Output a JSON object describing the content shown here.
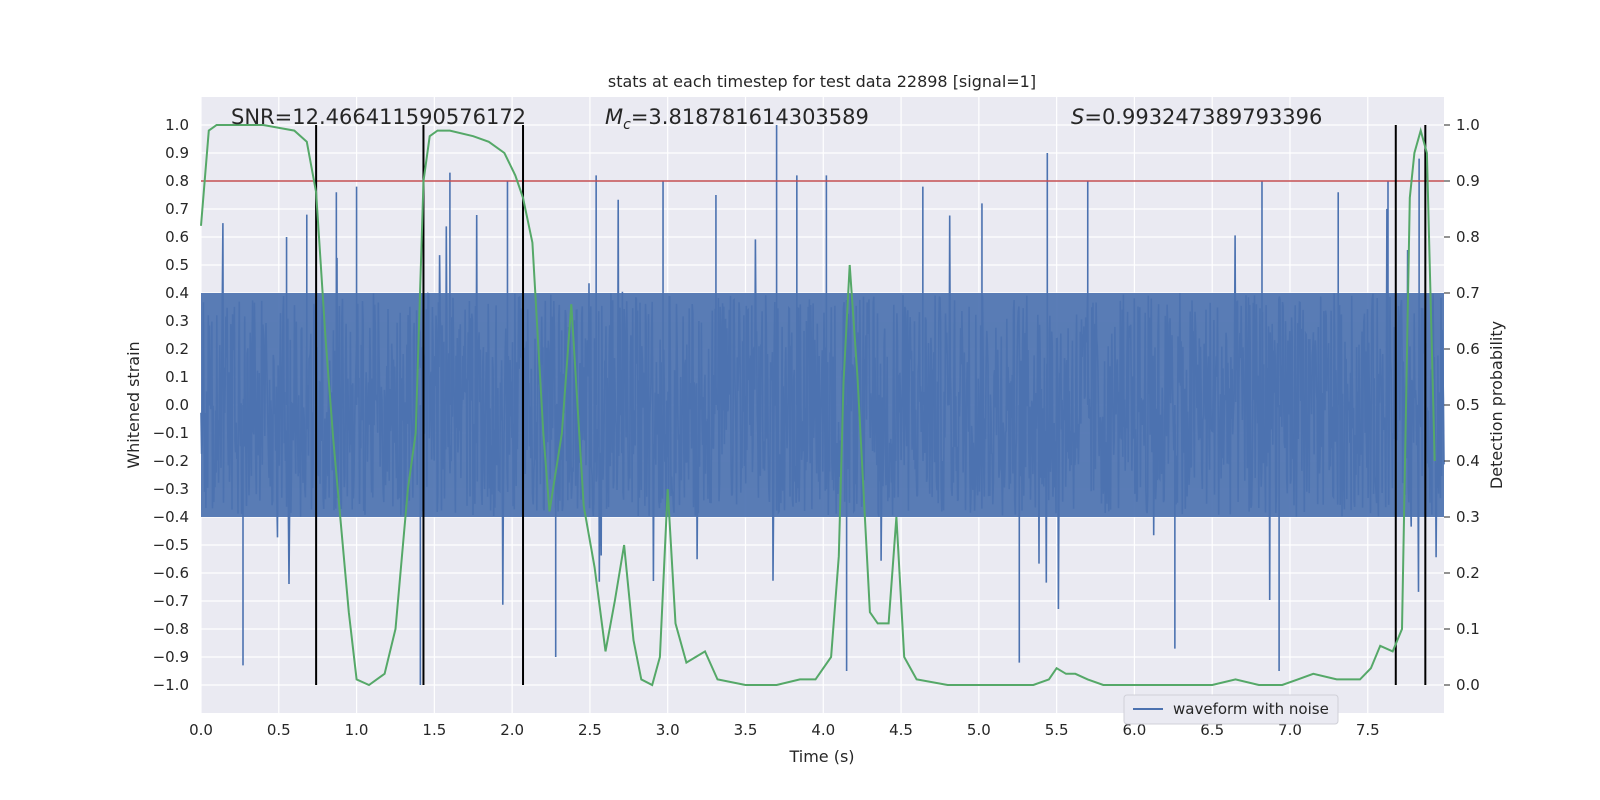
{
  "chart_data": {
    "type": "line",
    "title": "stats at each timestep for test data 22898 [signal=1]",
    "xlabel": "Time (s)",
    "ylabel": "Whitened strain",
    "ylabel_right": "Detection probability",
    "xlim": [
      0.0,
      7.99
    ],
    "ylim": [
      -1.1,
      1.1
    ],
    "ylim_right": [
      -0.05,
      1.05
    ],
    "xticks": [
      "0.0",
      "0.5",
      "1.0",
      "1.5",
      "2.0",
      "2.5",
      "3.0",
      "3.5",
      "4.0",
      "4.5",
      "5.0",
      "5.5",
      "6.0",
      "6.5",
      "7.0",
      "7.5"
    ],
    "xtick_values": [
      0,
      0.5,
      1,
      1.5,
      2,
      2.5,
      3,
      3.5,
      4,
      4.5,
      5,
      5.5,
      6,
      6.5,
      7,
      7.5
    ],
    "yticks": [
      "1.0",
      "0.9",
      "0.8",
      "0.7",
      "0.6",
      "0.5",
      "0.4",
      "0.3",
      "0.2",
      "0.1",
      "0.0",
      "−0.1",
      "−0.2",
      "−0.3",
      "−0.4",
      "−0.5",
      "−0.6",
      "−0.7",
      "−0.8",
      "−0.9",
      "−1.0"
    ],
    "ytick_values": [
      1.0,
      0.9,
      0.8,
      0.7,
      0.6,
      0.5,
      0.4,
      0.3,
      0.2,
      0.1,
      0.0,
      -0.1,
      -0.2,
      -0.3,
      -0.4,
      -0.5,
      -0.6,
      -0.7,
      -0.8,
      -0.9,
      -1.0
    ],
    "yticks_right": [
      "1.0",
      "0.9",
      "0.8",
      "0.7",
      "0.6",
      "0.5",
      "0.4",
      "0.3",
      "0.2",
      "0.1",
      "0.0"
    ],
    "ytick_values_right": [
      1.0,
      0.9,
      0.8,
      0.7,
      0.6,
      0.5,
      0.4,
      0.3,
      0.2,
      0.1,
      0.0
    ],
    "annotations": {
      "snr": "SNR=12.466411590576172",
      "mc_symbol": "M",
      "mc_subscript": "c",
      "mc_value": "=3.818781614303589",
      "s_symbol": "S",
      "s_value": "=0.993247389793396"
    },
    "threshold": {
      "value": 0.8,
      "color": "#c44e52"
    },
    "vertical_markers": [
      0.74,
      1.43,
      2.07,
      7.68,
      7.87
    ],
    "series": [
      {
        "name": "waveform with noise",
        "color": "#4c72b0",
        "style": "dense noise",
        "sample_count": 2048,
        "core_amplitude": 0.4,
        "spikes": [
          {
            "t": 0.27,
            "v": -0.93
          },
          {
            "t": 0.55,
            "v": 0.6
          },
          {
            "t": 0.68,
            "v": 0.68
          },
          {
            "t": 0.87,
            "v": 0.76
          },
          {
            "t": 1.0,
            "v": 0.78
          },
          {
            "t": 1.41,
            "v": -1.0
          },
          {
            "t": 1.6,
            "v": 0.83
          },
          {
            "t": 1.97,
            "v": 0.8
          },
          {
            "t": 2.28,
            "v": -0.9
          },
          {
            "t": 2.54,
            "v": 0.82
          },
          {
            "t": 2.97,
            "v": 0.8
          },
          {
            "t": 3.31,
            "v": 0.75
          },
          {
            "t": 3.7,
            "v": 1.0
          },
          {
            "t": 3.83,
            "v": 0.82
          },
          {
            "t": 4.02,
            "v": 0.82
          },
          {
            "t": 4.15,
            "v": -0.95
          },
          {
            "t": 4.64,
            "v": 0.78
          },
          {
            "t": 5.02,
            "v": 0.72
          },
          {
            "t": 5.26,
            "v": -0.92
          },
          {
            "t": 5.44,
            "v": 0.9
          },
          {
            "t": 5.7,
            "v": 0.8
          },
          {
            "t": 6.26,
            "v": -0.87
          },
          {
            "t": 6.82,
            "v": 0.8
          },
          {
            "t": 6.93,
            "v": -0.95
          },
          {
            "t": 7.31,
            "v": 0.76
          },
          {
            "t": 7.63,
            "v": 0.8
          },
          {
            "t": 7.83,
            "v": 0.88
          }
        ]
      },
      {
        "name": "detection probability",
        "color": "#55a868",
        "axis": "right",
        "x": [
          0.0,
          0.05,
          0.1,
          0.2,
          0.4,
          0.6,
          0.68,
          0.74,
          0.8,
          0.85,
          0.95,
          1.0,
          1.08,
          1.18,
          1.25,
          1.33,
          1.38,
          1.43,
          1.47,
          1.52,
          1.6,
          1.75,
          1.85,
          1.95,
          2.02,
          2.07,
          2.13,
          2.2,
          2.24,
          2.32,
          2.38,
          2.46,
          2.53,
          2.6,
          2.66,
          2.72,
          2.78,
          2.83,
          2.9,
          2.95,
          3.0,
          3.05,
          3.12,
          3.18,
          3.24,
          3.32,
          3.5,
          3.7,
          3.85,
          3.95,
          4.05,
          4.1,
          4.13,
          4.17,
          4.22,
          4.3,
          4.35,
          4.42,
          4.47,
          4.52,
          4.6,
          4.8,
          5.0,
          5.2,
          5.35,
          5.45,
          5.5,
          5.56,
          5.62,
          5.7,
          5.8,
          6.0,
          6.5,
          6.65,
          6.8,
          6.95,
          7.05,
          7.15,
          7.3,
          7.45,
          7.52,
          7.58,
          7.66,
          7.72,
          7.77,
          7.8,
          7.84,
          7.88,
          7.93
        ],
        "values": [
          0.82,
          0.99,
          1.0,
          1.0,
          1.0,
          0.99,
          0.97,
          0.88,
          0.62,
          0.44,
          0.13,
          0.01,
          0.0,
          0.02,
          0.1,
          0.35,
          0.45,
          0.9,
          0.98,
          0.99,
          0.99,
          0.98,
          0.97,
          0.95,
          0.91,
          0.87,
          0.79,
          0.45,
          0.31,
          0.45,
          0.68,
          0.32,
          0.21,
          0.06,
          0.15,
          0.25,
          0.08,
          0.01,
          0.0,
          0.05,
          0.35,
          0.11,
          0.04,
          0.05,
          0.06,
          0.01,
          0.0,
          0.0,
          0.01,
          0.01,
          0.05,
          0.23,
          0.54,
          0.75,
          0.55,
          0.13,
          0.11,
          0.11,
          0.3,
          0.05,
          0.01,
          0.0,
          0.0,
          0.0,
          0.0,
          0.01,
          0.03,
          0.02,
          0.02,
          0.01,
          0.0,
          0.0,
          0.0,
          0.01,
          0.0,
          0.0,
          0.01,
          0.02,
          0.01,
          0.01,
          0.03,
          0.07,
          0.06,
          0.1,
          0.87,
          0.95,
          0.99,
          0.95,
          0.4
        ]
      }
    ],
    "legend": {
      "label": "waveform with noise",
      "placement": "lower-right"
    },
    "grid": true,
    "colors": {
      "background": "#eaeaf2",
      "grid": "#ffffff",
      "marker": "#000000"
    }
  }
}
